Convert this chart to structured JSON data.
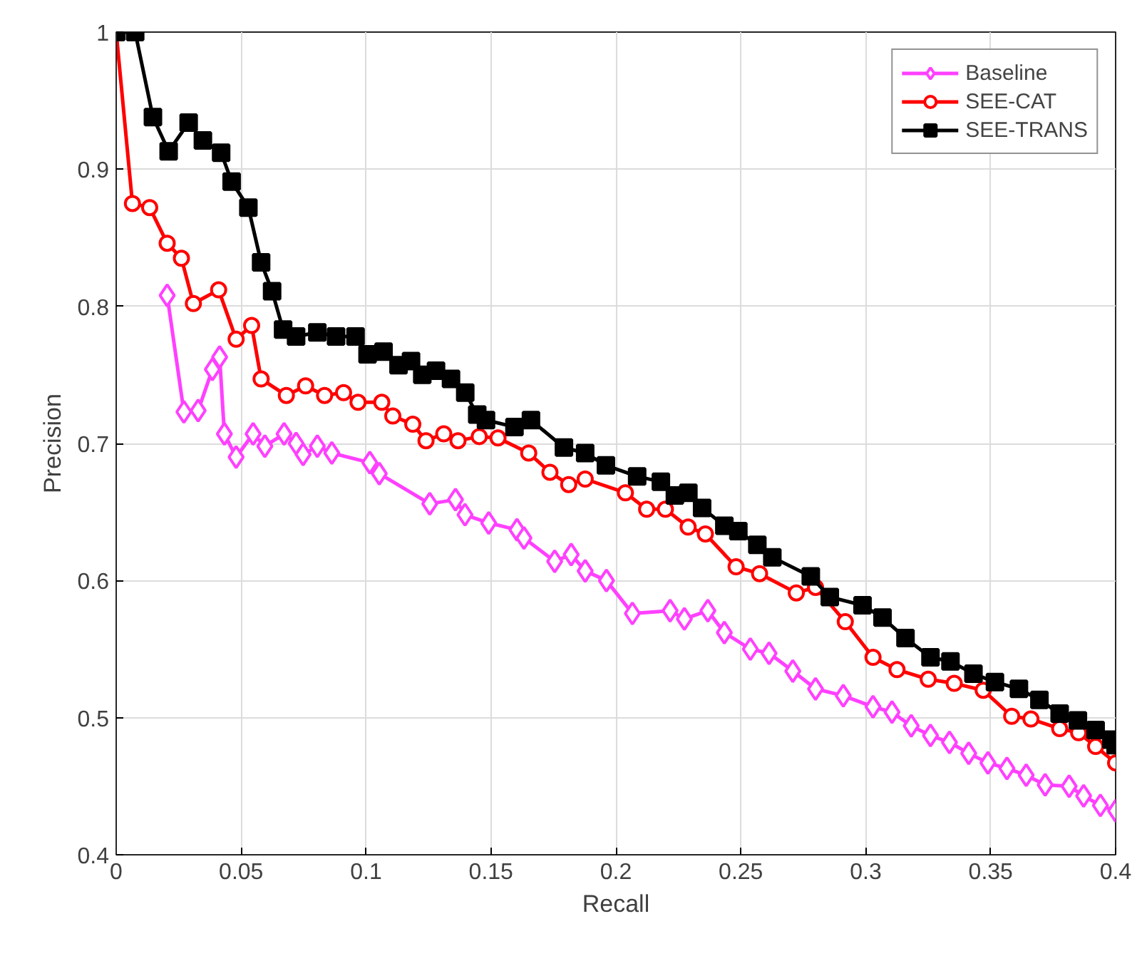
{
  "chart_data": {
    "type": "line",
    "xlabel": "Recall",
    "ylabel": "Precision",
    "xlim": [
      0,
      0.4
    ],
    "ylim": [
      0.4,
      1
    ],
    "xticks": [
      0,
      0.05,
      0.1,
      0.15,
      0.2,
      0.25,
      0.3,
      0.35,
      0.4
    ],
    "yticks": [
      0.4,
      0.5,
      0.6,
      0.7,
      0.8,
      0.9,
      1
    ],
    "grid": true,
    "legend": "top right",
    "line_style": "solid",
    "series": [
      {
        "name": "Baseline",
        "color": "#ff40ff",
        "marker": "diamond",
        "x": [
          0.0204,
          0.0271,
          0.0328,
          0.0385,
          0.0414,
          0.0433,
          0.048,
          0.0548,
          0.0595,
          0.0672,
          0.072,
          0.0748,
          0.0805,
          0.0863,
          0.1015,
          0.1053,
          0.1255,
          0.1358,
          0.1396,
          0.1491,
          0.1604,
          0.1632,
          0.1755,
          0.1821,
          0.1877,
          0.1962,
          0.2066,
          0.2217,
          0.2274,
          0.2368,
          0.2434,
          0.2538,
          0.2613,
          0.2708,
          0.2799,
          0.291,
          0.3029,
          0.3105,
          0.3182,
          0.3259,
          0.3335,
          0.3412,
          0.3489,
          0.3565,
          0.3642,
          0.3718,
          0.3814,
          0.3872,
          0.3939,
          0.4
        ],
        "values": [
          0.808,
          0.723,
          0.724,
          0.754,
          0.763,
          0.707,
          0.69,
          0.707,
          0.698,
          0.707,
          0.7,
          0.692,
          0.698,
          0.693,
          0.686,
          0.678,
          0.656,
          0.659,
          0.648,
          0.642,
          0.637,
          0.631,
          0.614,
          0.619,
          0.607,
          0.6,
          0.576,
          0.578,
          0.572,
          0.578,
          0.562,
          0.55,
          0.547,
          0.534,
          0.521,
          0.516,
          0.508,
          0.504,
          0.494,
          0.487,
          0.482,
          0.474,
          0.467,
          0.463,
          0.458,
          0.451,
          0.45,
          0.443,
          0.436,
          0.432
        ]
      },
      {
        "name": "SEE-CAT",
        "color": "#ff0000",
        "marker": "circle",
        "x": [
          0,
          0.0065,
          0.0134,
          0.0204,
          0.0261,
          0.0309,
          0.041,
          0.048,
          0.0542,
          0.058,
          0.0681,
          0.0758,
          0.0834,
          0.091,
          0.0968,
          0.1063,
          0.1107,
          0.1187,
          0.124,
          0.1311,
          0.1368,
          0.1453,
          0.1528,
          0.1651,
          0.1736,
          0.1811,
          0.1877,
          0.2038,
          0.2123,
          0.2198,
          0.2289,
          0.2358,
          0.2481,
          0.2575,
          0.2722,
          0.2799,
          0.2918,
          0.3029,
          0.3125,
          0.325,
          0.3354,
          0.347,
          0.3584,
          0.3661,
          0.3776,
          0.3852,
          0.392,
          0.4
        ],
        "values": [
          1.0,
          0.875,
          0.872,
          0.846,
          0.835,
          0.802,
          0.812,
          0.776,
          0.786,
          0.747,
          0.735,
          0.742,
          0.735,
          0.737,
          0.73,
          0.73,
          0.72,
          0.714,
          0.702,
          0.707,
          0.702,
          0.705,
          0.704,
          0.693,
          0.679,
          0.67,
          0.674,
          0.664,
          0.652,
          0.652,
          0.639,
          0.634,
          0.61,
          0.605,
          0.591,
          0.595,
          0.57,
          0.544,
          0.535,
          0.528,
          0.525,
          0.52,
          0.501,
          0.499,
          0.492,
          0.489,
          0.479,
          0.467
        ]
      },
      {
        "name": "SEE-TRANS",
        "color": "#000000",
        "marker": "square",
        "x": [
          0,
          0.0076,
          0.0147,
          0.021,
          0.029,
          0.0347,
          0.042,
          0.0462,
          0.0529,
          0.058,
          0.0624,
          0.0668,
          0.072,
          0.0805,
          0.088,
          0.0958,
          0.1006,
          0.107,
          0.113,
          0.118,
          0.1225,
          0.128,
          0.134,
          0.1397,
          0.1445,
          0.148,
          0.1594,
          0.166,
          0.1792,
          0.1877,
          0.196,
          0.2085,
          0.218,
          0.2236,
          0.229,
          0.2345,
          0.2434,
          0.249,
          0.2566,
          0.2626,
          0.278,
          0.2856,
          0.2987,
          0.3067,
          0.3159,
          0.3259,
          0.3339,
          0.3431,
          0.3517,
          0.3613,
          0.3695,
          0.3776,
          0.3849,
          0.392,
          0.3983,
          0.4
        ],
        "values": [
          1.0,
          1.0,
          0.938,
          0.913,
          0.934,
          0.921,
          0.912,
          0.891,
          0.872,
          0.832,
          0.811,
          0.783,
          0.778,
          0.781,
          0.778,
          0.778,
          0.765,
          0.767,
          0.757,
          0.76,
          0.75,
          0.753,
          0.747,
          0.737,
          0.721,
          0.717,
          0.712,
          0.717,
          0.697,
          0.693,
          0.684,
          0.676,
          0.672,
          0.662,
          0.664,
          0.653,
          0.64,
          0.636,
          0.626,
          0.617,
          0.603,
          0.588,
          0.582,
          0.573,
          0.558,
          0.544,
          0.541,
          0.532,
          0.526,
          0.521,
          0.513,
          0.503,
          0.498,
          0.491,
          0.484,
          0.48
        ]
      }
    ]
  }
}
